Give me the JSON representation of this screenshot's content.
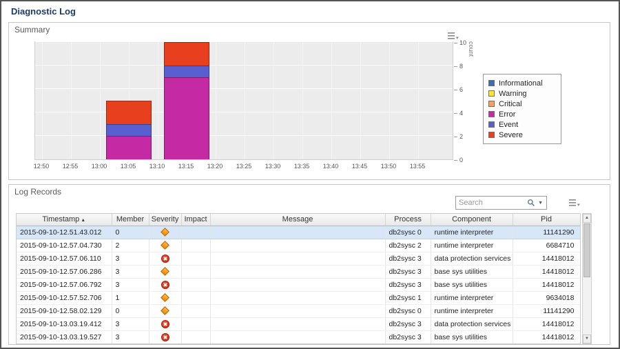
{
  "page": {
    "title": "Diagnostic Log"
  },
  "summary_panel": {
    "title": "Summary"
  },
  "chart_data": {
    "type": "bar",
    "stacked": true,
    "title": "",
    "xlabel": "",
    "ylabel": "count",
    "ylim": [
      0,
      10
    ],
    "yticks": [
      0,
      2,
      4,
      6,
      8,
      10
    ],
    "x_ticks": [
      "12:50",
      "12:55",
      "13:00",
      "13:05",
      "13:10",
      "13:15",
      "13:20",
      "13:25",
      "13:30",
      "13:35",
      "13:40",
      "13:45",
      "13:50",
      "13:55"
    ],
    "legend_position": "right",
    "grid": true,
    "legend": [
      {
        "name": "Informational",
        "color": "#3c6db0"
      },
      {
        "name": "Warning",
        "color": "#ffe23d"
      },
      {
        "name": "Critical",
        "color": "#f9a352"
      },
      {
        "name": "Error",
        "color": "#c32aa4"
      },
      {
        "name": "Event",
        "color": "#5a5fd0"
      },
      {
        "name": "Severe",
        "color": "#e8401f"
      }
    ],
    "bars": [
      {
        "x": "13:05",
        "stack": [
          {
            "name": "Error",
            "value": 2
          },
          {
            "name": "Event",
            "value": 1
          },
          {
            "name": "Severe",
            "value": 2
          }
        ]
      },
      {
        "x": "13:15",
        "stack": [
          {
            "name": "Error",
            "value": 7
          },
          {
            "name": "Event",
            "value": 1
          },
          {
            "name": "Severe",
            "value": 2
          }
        ]
      }
    ]
  },
  "log_panel": {
    "title": "Log Records",
    "search": {
      "placeholder": "Search"
    },
    "table": {
      "sort_indicator": "▲",
      "columns": [
        {
          "key": "timestamp",
          "label": "Timestamp",
          "sorted": "asc"
        },
        {
          "key": "member",
          "label": "Member"
        },
        {
          "key": "severity",
          "label": "Severity"
        },
        {
          "key": "impact",
          "label": "Impact"
        },
        {
          "key": "message",
          "label": "Message"
        },
        {
          "key": "process",
          "label": "Process"
        },
        {
          "key": "component",
          "label": "Component"
        },
        {
          "key": "pid",
          "label": "Pid"
        }
      ],
      "rows": [
        {
          "timestamp": "2015-09-10-12.51.43.012",
          "member": "0",
          "severity": "warning",
          "impact": "",
          "message": "",
          "process": "db2sysc 0",
          "component": "runtime interpreter",
          "pid": "11141290",
          "selected": true
        },
        {
          "timestamp": "2015-09-10-12.57.04.730",
          "member": "2",
          "severity": "warning",
          "impact": "",
          "message": "",
          "process": "db2sysc 2",
          "component": "runtime interpreter",
          "pid": "6684710"
        },
        {
          "timestamp": "2015-09-10-12.57.06.110",
          "member": "3",
          "severity": "error",
          "impact": "",
          "message": "",
          "process": "db2sysc 3",
          "component": "data protection services",
          "pid": "14418012"
        },
        {
          "timestamp": "2015-09-10-12.57.06.286",
          "member": "3",
          "severity": "warning",
          "impact": "",
          "message": "",
          "process": "db2sysc 3",
          "component": "base sys utilities",
          "pid": "14418012"
        },
        {
          "timestamp": "2015-09-10-12.57.06.792",
          "member": "3",
          "severity": "error",
          "impact": "",
          "message": "",
          "process": "db2sysc 3",
          "component": "base sys utilities",
          "pid": "14418012"
        },
        {
          "timestamp": "2015-09-10-12.57.52.706",
          "member": "1",
          "severity": "warning",
          "impact": "",
          "message": "",
          "process": "db2sysc 1",
          "component": "runtime interpreter",
          "pid": "9634018"
        },
        {
          "timestamp": "2015-09-10-12.58.02.129",
          "member": "0",
          "severity": "warning",
          "impact": "",
          "message": "",
          "process": "db2sysc 0",
          "component": "runtime interpreter",
          "pid": "11141290"
        },
        {
          "timestamp": "2015-09-10-13.03.19.412",
          "member": "3",
          "severity": "error",
          "impact": "",
          "message": "",
          "process": "db2sysc 3",
          "component": "data protection services",
          "pid": "14418012"
        },
        {
          "timestamp": "2015-09-10-13.03.19.527",
          "member": "3",
          "severity": "error",
          "impact": "",
          "message": "",
          "process": "db2sysc 3",
          "component": "base sys utilities",
          "pid": "14418012"
        }
      ]
    }
  }
}
